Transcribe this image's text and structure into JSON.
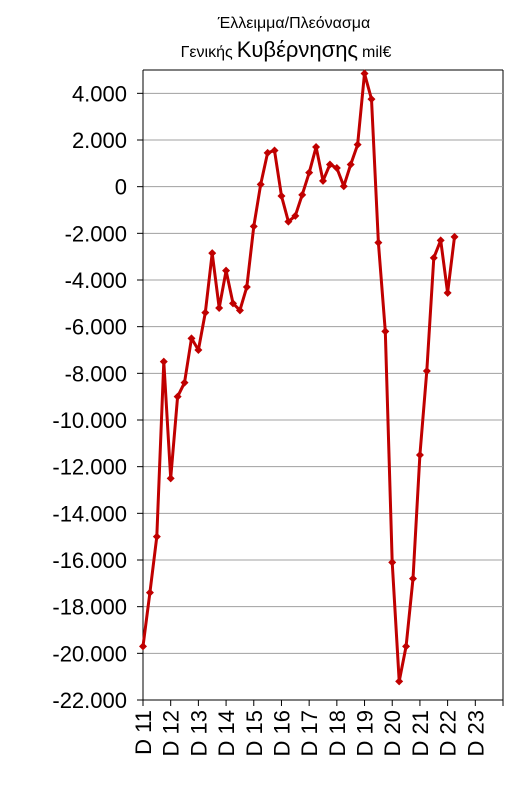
{
  "chart_data": {
    "type": "line",
    "title_line1": "Έλλειμμα/Πλεόνασμα",
    "title_line2_small": "Γενικής",
    "title_line2_large": "Κυβέρνησης",
    "title_line2_unit": "mil€",
    "xlabel": "",
    "ylabel": "",
    "ylim": [
      -22000,
      5000
    ],
    "yticks": [
      4000,
      2000,
      0,
      -2000,
      -4000,
      -6000,
      -8000,
      -10000,
      -12000,
      -14000,
      -16000,
      -18000,
      -20000,
      -22000
    ],
    "ytick_labels": [
      "4.000",
      "2.000",
      "0",
      "-2.000",
      "-4.000",
      "-6.000",
      "-8.000",
      "-10.000",
      "-12.000",
      "-14.000",
      "-16.000",
      "-18.000",
      "-20.000",
      "-22.000"
    ],
    "xtick_labels": [
      "D 11",
      "D 12",
      "D 13",
      "D 14",
      "D 15",
      "D 16",
      "D 17",
      "D 18",
      "D 19",
      "D 20",
      "D 21",
      "D 22",
      "D 23"
    ],
    "points_per_year": 4,
    "grid": "horizontal",
    "legend": "none",
    "series": [
      {
        "color": "#c00000",
        "values": [
          -19700,
          -17400,
          -15000,
          -7500,
          -12500,
          -9000,
          -8400,
          -6500,
          -7000,
          -5400,
          -2850,
          -5200,
          -3600,
          -5000,
          -5300,
          -4300,
          -1700,
          100,
          1450,
          1550,
          -400,
          -1500,
          -1250,
          -350,
          600,
          1700,
          250,
          950,
          800,
          20,
          950,
          1800,
          4850,
          3750,
          -2400,
          -6200,
          -16100,
          -21200,
          -19700,
          -16800,
          -11500,
          -7900,
          -3050,
          -2300,
          -4550,
          -2150
        ]
      }
    ]
  }
}
